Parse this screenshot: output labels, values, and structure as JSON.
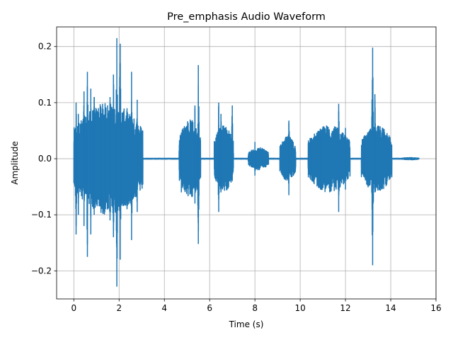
{
  "chart_data": {
    "type": "line",
    "title": "Pre_emphasis Audio Waveform",
    "xlabel": "Time (s)",
    "ylabel": "Amplitude",
    "xlim": [
      -0.76,
      16.0
    ],
    "ylim": [
      -0.25,
      0.235
    ],
    "grid": true,
    "series": [
      {
        "color": "#1f77b4",
        "duration_s": 15.25,
        "segments": [
          {
            "start": 0.0,
            "end": 3.05,
            "peak_pos": 0.1,
            "peak_neg": -0.1
          },
          {
            "start": 4.65,
            "end": 5.6,
            "peak_pos": 0.07,
            "peak_neg": -0.07
          },
          {
            "start": 6.2,
            "end": 7.05,
            "peak_pos": 0.06,
            "peak_neg": -0.06
          },
          {
            "start": 7.7,
            "end": 8.6,
            "peak_pos": 0.02,
            "peak_neg": -0.02
          },
          {
            "start": 9.1,
            "end": 9.8,
            "peak_pos": 0.04,
            "peak_neg": -0.04
          },
          {
            "start": 10.35,
            "end": 12.2,
            "peak_pos": 0.06,
            "peak_neg": -0.06
          },
          {
            "start": 12.7,
            "end": 14.05,
            "peak_pos": 0.06,
            "peak_neg": -0.06
          },
          {
            "start": 14.5,
            "end": 15.25,
            "peak_pos": 0.002,
            "peak_neg": -0.002
          }
        ],
        "spikes": [
          {
            "x": 0.1,
            "max": 0.1,
            "min": -0.135
          },
          {
            "x": 0.2,
            "max": 0.08,
            "min": -0.1
          },
          {
            "x": 0.45,
            "max": 0.12,
            "min": -0.12
          },
          {
            "x": 0.6,
            "max": 0.155,
            "min": -0.175
          },
          {
            "x": 0.75,
            "max": 0.125,
            "min": -0.135
          },
          {
            "x": 0.9,
            "max": 0.11,
            "min": -0.1
          },
          {
            "x": 1.2,
            "max": 0.09,
            "min": -0.09
          },
          {
            "x": 1.4,
            "max": 0.07,
            "min": -0.09
          },
          {
            "x": 1.6,
            "max": 0.11,
            "min": -0.11
          },
          {
            "x": 1.75,
            "max": 0.15,
            "min": -0.14
          },
          {
            "x": 1.9,
            "max": 0.215,
            "min": -0.228
          },
          {
            "x": 2.05,
            "max": 0.205,
            "min": -0.18
          },
          {
            "x": 2.35,
            "max": 0.09,
            "min": -0.09
          },
          {
            "x": 2.55,
            "max": 0.155,
            "min": -0.145
          },
          {
            "x": 2.8,
            "max": 0.105,
            "min": -0.095
          },
          {
            "x": 4.75,
            "max": 0.045,
            "min": -0.06
          },
          {
            "x": 5.35,
            "max": 0.095,
            "min": -0.08
          },
          {
            "x": 5.5,
            "max": 0.167,
            "min": -0.152
          },
          {
            "x": 6.4,
            "max": 0.1,
            "min": -0.095
          },
          {
            "x": 6.5,
            "max": 0.08,
            "min": -0.06
          },
          {
            "x": 7.0,
            "max": 0.095,
            "min": -0.04
          },
          {
            "x": 8.0,
            "max": 0.03,
            "min": -0.03
          },
          {
            "x": 9.5,
            "max": 0.068,
            "min": -0.065
          },
          {
            "x": 10.5,
            "max": 0.03,
            "min": -0.03
          },
          {
            "x": 10.9,
            "max": 0.04,
            "min": -0.055
          },
          {
            "x": 11.7,
            "max": 0.098,
            "min": -0.095
          },
          {
            "x": 12.0,
            "max": 0.055,
            "min": -0.055
          },
          {
            "x": 12.8,
            "max": 0.03,
            "min": -0.03
          },
          {
            "x": 13.2,
            "max": 0.198,
            "min": -0.19
          },
          {
            "x": 13.3,
            "max": 0.115,
            "min": -0.06
          },
          {
            "x": 13.85,
            "max": 0.041,
            "min": -0.035
          }
        ]
      }
    ],
    "x_ticks": [
      {
        "value": 0,
        "label": "0"
      },
      {
        "value": 2,
        "label": "2"
      },
      {
        "value": 4,
        "label": "4"
      },
      {
        "value": 6,
        "label": "6"
      },
      {
        "value": 8,
        "label": "8"
      },
      {
        "value": 10,
        "label": "10"
      },
      {
        "value": 12,
        "label": "12"
      },
      {
        "value": 14,
        "label": "14"
      },
      {
        "value": 16,
        "label": "16"
      }
    ],
    "y_ticks": [
      {
        "value": -0.2,
        "label": "−0.2"
      },
      {
        "value": -0.1,
        "label": "−0.1"
      },
      {
        "value": 0.0,
        "label": "0.0"
      },
      {
        "value": 0.1,
        "label": "0.1"
      },
      {
        "value": 0.2,
        "label": "0.2"
      }
    ]
  }
}
